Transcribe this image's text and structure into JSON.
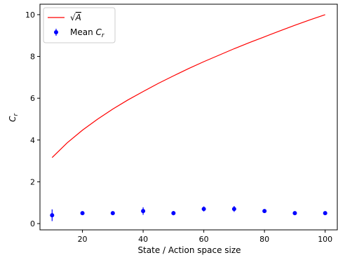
{
  "chart_data": {
    "type": "line",
    "xlabel": "State / Action space size",
    "ylabel": "C_r",
    "xlim": [
      6,
      104
    ],
    "ylim": [
      -0.3,
      10.5
    ],
    "xticks": [
      20,
      40,
      60,
      80,
      100
    ],
    "yticks": [
      0,
      2,
      4,
      6,
      8,
      10
    ],
    "grid": false,
    "legend_placement": "top-left",
    "series": [
      {
        "name": "√A",
        "kind": "line",
        "color": "#ff0000",
        "x": [
          10,
          15,
          20,
          25,
          30,
          35,
          40,
          45,
          50,
          55,
          60,
          65,
          70,
          75,
          80,
          85,
          90,
          95,
          100
        ],
        "y": [
          3.16,
          3.87,
          4.47,
          5.0,
          5.48,
          5.92,
          6.32,
          6.71,
          7.07,
          7.42,
          7.75,
          8.06,
          8.37,
          8.66,
          8.94,
          9.22,
          9.49,
          9.75,
          10.0
        ]
      },
      {
        "name": "Mean C_r",
        "kind": "errorbar",
        "color": "#0000ff",
        "x": [
          10,
          20,
          30,
          40,
          50,
          60,
          70,
          80,
          90,
          100
        ],
        "y": [
          0.4,
          0.5,
          0.5,
          0.6,
          0.5,
          0.7,
          0.7,
          0.6,
          0.5,
          0.5
        ],
        "yerr": [
          0.28,
          0.04,
          0.04,
          0.18,
          0.1,
          0.12,
          0.14,
          0.06,
          0.04,
          0.04
        ]
      }
    ]
  }
}
